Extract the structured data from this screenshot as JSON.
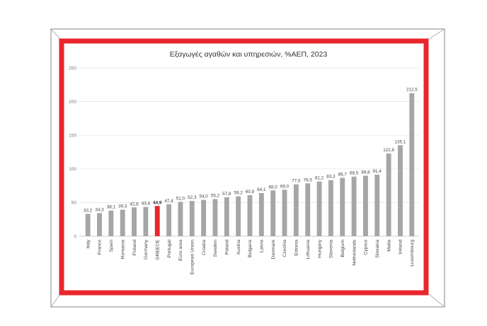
{
  "colors": {
    "frame_outer": "#9a9a9a",
    "border_red": "#e8262c",
    "bar": "#a6a6a6",
    "highlight_bar": "#e8262c",
    "grid": "#e4e4e4"
  },
  "chart_data": {
    "type": "bar",
    "title": "Εξαγωγές αγαθών και υπηρεσιών, %ΑΕΠ, 2023",
    "xlabel": "",
    "ylabel": "",
    "ylim": [
      0,
      250
    ],
    "yticks": [
      0,
      50,
      100,
      150,
      200,
      250
    ],
    "grid": true,
    "highlight_category": "GREECE",
    "categories": [
      "Italy",
      "France",
      "Spain",
      "Romania",
      "Finland",
      "Germany",
      "GREECE",
      "Portugal",
      "Euro area",
      "European Union",
      "Croatia",
      "Sweden",
      "Poland",
      "Austria",
      "Bulgaria",
      "Latvia",
      "Denmark",
      "Czechia",
      "Estonia",
      "Lithuania",
      "Hungary",
      "Slovenia",
      "Belgium",
      "Netherlands",
      "Cyprus",
      "Slovakia",
      "Malta",
      "Ireland",
      "Luxembourg"
    ],
    "values": [
      33.2,
      34.3,
      38.1,
      39.3,
      42.8,
      43.4,
      44.9,
      47.4,
      51.0,
      52.3,
      54.0,
      55.2,
      57.8,
      59.2,
      60.9,
      64.1,
      68.0,
      69.0,
      77.0,
      78.5,
      81.2,
      83.3,
      86.7,
      88.5,
      89.8,
      91.4,
      122.8,
      135.1,
      212.5
    ],
    "value_labels": [
      "33,2",
      "34,3",
      "38,1",
      "39,3",
      "42,8",
      "43,4",
      "44,9",
      "47,4",
      "51,0",
      "52,3",
      "54,0",
      "55,2",
      "57,8",
      "59,2",
      "60,9",
      "64,1",
      "68,0",
      "69,0",
      "77,0",
      "78,5",
      "81,2",
      "83,3",
      "86,7",
      "88,5",
      "89,8",
      "91,4",
      "122,8",
      "135,1",
      "212,5"
    ]
  }
}
